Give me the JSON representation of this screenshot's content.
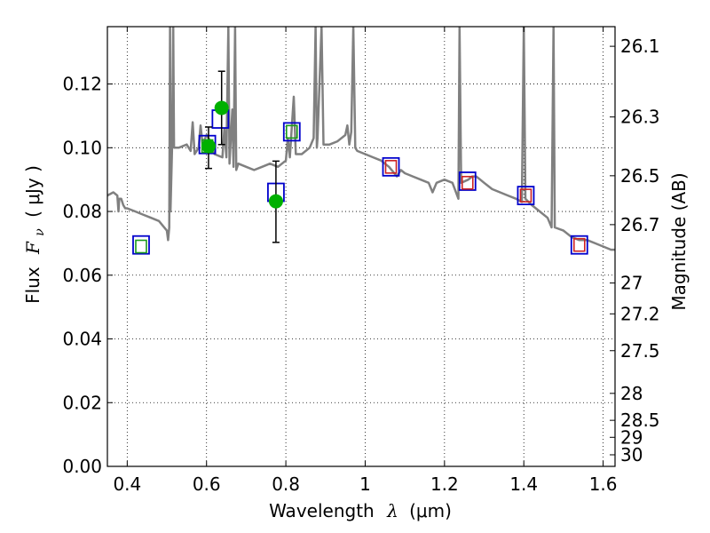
{
  "chart_data": {
    "type": "scatter",
    "xlabel": "Wavelength",
    "xlabel_symbol": "λ",
    "xlabel_unit": "(μm)",
    "ylabel": "Flux",
    "ylabel_symbol": "F",
    "ylabel_subscript": "ν",
    "ylabel_unit": "( μJy )",
    "y2label": "Magnitude (AB)",
    "xlim": [
      0.35,
      1.63
    ],
    "ylim": [
      0.0,
      0.138
    ],
    "grid": true,
    "x_ticks": [
      0.4,
      0.6,
      0.8,
      1.0,
      1.2,
      1.4,
      1.6
    ],
    "x_tick_labels": [
      "0.4",
      "0.6",
      "0.8",
      "1",
      "1.2",
      "1.4",
      "1.6"
    ],
    "y_ticks": [
      0.0,
      0.02,
      0.04,
      0.06,
      0.08,
      0.1,
      0.12
    ],
    "y_tick_labels": [
      "0.00",
      "0.02",
      "0.04",
      "0.06",
      "0.08",
      "0.10",
      "0.12"
    ],
    "y2_ticks": [
      26.1,
      26.3,
      26.5,
      26.7,
      27,
      27.2,
      27.5,
      28,
      28.5,
      29,
      30
    ],
    "y2_tick_labels": [
      "26.1",
      "26.3",
      "26.5",
      "26.7",
      "27",
      "27.2",
      "27.5",
      "28",
      "28.5",
      "29",
      "30"
    ],
    "model_spectrum": {
      "color": "#808080",
      "points": [
        [
          0.35,
          0.085
        ],
        [
          0.365,
          0.086
        ],
        [
          0.375,
          0.085
        ],
        [
          0.378,
          0.08
        ],
        [
          0.38,
          0.084
        ],
        [
          0.385,
          0.084
        ],
        [
          0.39,
          0.082
        ],
        [
          0.395,
          0.081
        ],
        [
          0.4,
          0.081
        ],
        [
          0.42,
          0.08
        ],
        [
          0.44,
          0.079
        ],
        [
          0.46,
          0.078
        ],
        [
          0.48,
          0.077
        ],
        [
          0.5,
          0.074
        ],
        [
          0.503,
          0.071
        ],
        [
          0.506,
          0.075
        ],
        [
          0.508,
          0.138
        ],
        [
          0.509,
          0.08
        ],
        [
          0.513,
          0.099
        ],
        [
          0.516,
          0.138
        ],
        [
          0.518,
          0.1
        ],
        [
          0.53,
          0.1
        ],
        [
          0.55,
          0.101
        ],
        [
          0.56,
          0.099
        ],
        [
          0.565,
          0.108
        ],
        [
          0.57,
          0.098
        ],
        [
          0.58,
          0.1
        ],
        [
          0.585,
          0.107
        ],
        [
          0.59,
          0.101
        ],
        [
          0.6,
          0.104
        ],
        [
          0.61,
          0.102
        ],
        [
          0.62,
          0.098
        ],
        [
          0.64,
          0.097
        ],
        [
          0.645,
          0.106
        ],
        [
          0.65,
          0.097
        ],
        [
          0.655,
          0.138
        ],
        [
          0.658,
          0.095
        ],
        [
          0.665,
          0.112
        ],
        [
          0.668,
          0.094
        ],
        [
          0.672,
          0.138
        ],
        [
          0.675,
          0.093
        ],
        [
          0.68,
          0.095
        ],
        [
          0.7,
          0.094
        ],
        [
          0.72,
          0.093
        ],
        [
          0.74,
          0.094
        ],
        [
          0.76,
          0.095
        ],
        [
          0.78,
          0.094
        ],
        [
          0.8,
          0.096
        ],
        [
          0.805,
          0.103
        ],
        [
          0.81,
          0.097
        ],
        [
          0.82,
          0.116
        ],
        [
          0.825,
          0.098
        ],
        [
          0.84,
          0.098
        ],
        [
          0.86,
          0.1
        ],
        [
          0.87,
          0.103
        ],
        [
          0.875,
          0.138
        ],
        [
          0.878,
          0.1
        ],
        [
          0.88,
          0.103
        ],
        [
          0.89,
          0.138
        ],
        [
          0.895,
          0.101
        ],
        [
          0.91,
          0.101
        ],
        [
          0.93,
          0.102
        ],
        [
          0.95,
          0.104
        ],
        [
          0.955,
          0.107
        ],
        [
          0.96,
          0.101
        ],
        [
          0.965,
          0.105
        ],
        [
          0.97,
          0.138
        ],
        [
          0.975,
          0.1
        ],
        [
          0.98,
          0.099
        ],
        [
          1.0,
          0.098
        ],
        [
          1.02,
          0.097
        ],
        [
          1.04,
          0.096
        ],
        [
          1.06,
          0.094
        ],
        [
          1.08,
          0.091
        ],
        [
          1.09,
          0.093
        ],
        [
          1.1,
          0.092
        ],
        [
          1.12,
          0.091
        ],
        [
          1.14,
          0.09
        ],
        [
          1.16,
          0.089
        ],
        [
          1.17,
          0.086
        ],
        [
          1.18,
          0.089
        ],
        [
          1.2,
          0.09
        ],
        [
          1.22,
          0.089
        ],
        [
          1.235,
          0.084
        ],
        [
          1.238,
          0.138
        ],
        [
          1.242,
          0.089
        ],
        [
          1.26,
          0.09
        ],
        [
          1.27,
          0.091
        ],
        [
          1.28,
          0.091
        ],
        [
          1.29,
          0.09
        ],
        [
          1.3,
          0.089
        ],
        [
          1.32,
          0.087
        ],
        [
          1.34,
          0.086
        ],
        [
          1.36,
          0.085
        ],
        [
          1.38,
          0.084
        ],
        [
          1.395,
          0.083
        ],
        [
          1.4,
          0.138
        ],
        [
          1.404,
          0.084
        ],
        [
          1.42,
          0.082
        ],
        [
          1.44,
          0.08
        ],
        [
          1.46,
          0.078
        ],
        [
          1.47,
          0.075
        ],
        [
          1.475,
          0.138
        ],
        [
          1.478,
          0.075
        ],
        [
          1.5,
          0.074
        ],
        [
          1.52,
          0.072
        ],
        [
          1.54,
          0.071
        ],
        [
          1.56,
          0.071
        ],
        [
          1.58,
          0.07
        ],
        [
          1.6,
          0.069
        ],
        [
          1.62,
          0.068
        ],
        [
          1.63,
          0.068
        ]
      ]
    },
    "model_photometry": {
      "edge_color": "#0000cc",
      "points": [
        [
          0.435,
          0.0695
        ],
        [
          0.602,
          0.101
        ],
        [
          0.635,
          0.109
        ],
        [
          0.775,
          0.086
        ],
        [
          0.815,
          0.105
        ],
        [
          1.065,
          0.094
        ],
        [
          1.258,
          0.0895
        ],
        [
          1.405,
          0.085
        ],
        [
          1.54,
          0.0695
        ]
      ]
    },
    "predicted_green": {
      "edge_color": "#1a9a1a",
      "points": [
        [
          0.435,
          0.069
        ],
        [
          0.602,
          0.1005
        ],
        [
          0.815,
          0.105
        ]
      ]
    },
    "predicted_red": {
      "edge_color": "#cc2222",
      "points": [
        [
          1.065,
          0.094
        ],
        [
          1.258,
          0.089
        ],
        [
          1.405,
          0.085
        ],
        [
          1.54,
          0.0695
        ]
      ]
    },
    "observed": {
      "color": "#00b000",
      "points": [
        {
          "x": 0.605,
          "y": 0.1005,
          "yerr_low": 0.0935,
          "yerr_high": 0.1065
        },
        {
          "x": 0.638,
          "y": 0.1125,
          "yerr_low": 0.101,
          "yerr_high": 0.124
        },
        {
          "x": 0.775,
          "y": 0.0832,
          "yerr_low": 0.0703,
          "yerr_high": 0.0958
        }
      ]
    }
  }
}
